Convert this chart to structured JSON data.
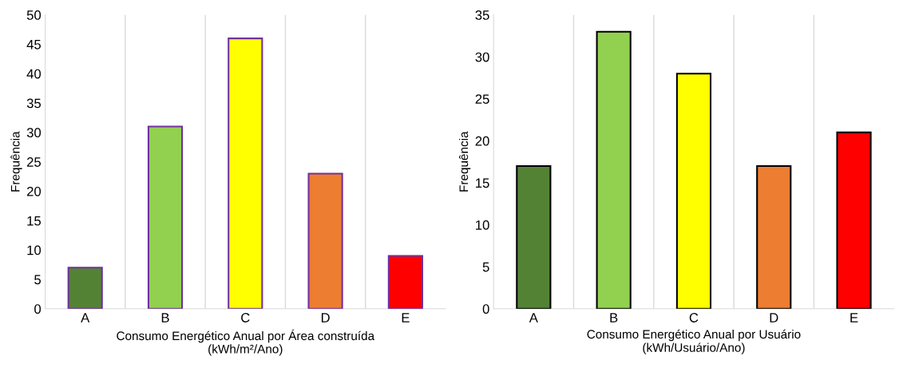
{
  "chart_data": [
    {
      "type": "bar",
      "xlabel": "Consumo Energético Anual por Área construída\n(kWh/m²/Ano)",
      "ylabel": "Frequência",
      "categories": [
        "A",
        "B",
        "C",
        "D",
        "E"
      ],
      "values": [
        7,
        31,
        46,
        23,
        9
      ],
      "colors": [
        "#548235",
        "#92d050",
        "#ffff00",
        "#ed7d31",
        "#ff0000"
      ],
      "ylim": [
        0,
        50
      ],
      "yticks": [
        0,
        5,
        10,
        15,
        20,
        25,
        30,
        35,
        40,
        45,
        50
      ],
      "grid": "x"
    },
    {
      "type": "bar",
      "xlabel": "Consumo Energético Anual por Usuário\n(kWh/Usuário/Ano)",
      "ylabel": "Frequência",
      "categories": [
        "A",
        "B",
        "C",
        "D",
        "E"
      ],
      "values": [
        17,
        33,
        28,
        17,
        21
      ],
      "colors": [
        "#548235",
        "#92d050",
        "#ffff00",
        "#ed7d31",
        "#ff0000"
      ],
      "ylim": [
        0,
        35
      ],
      "yticks": [
        0,
        5,
        10,
        15,
        20,
        25,
        30,
        35
      ],
      "grid": "x"
    }
  ]
}
